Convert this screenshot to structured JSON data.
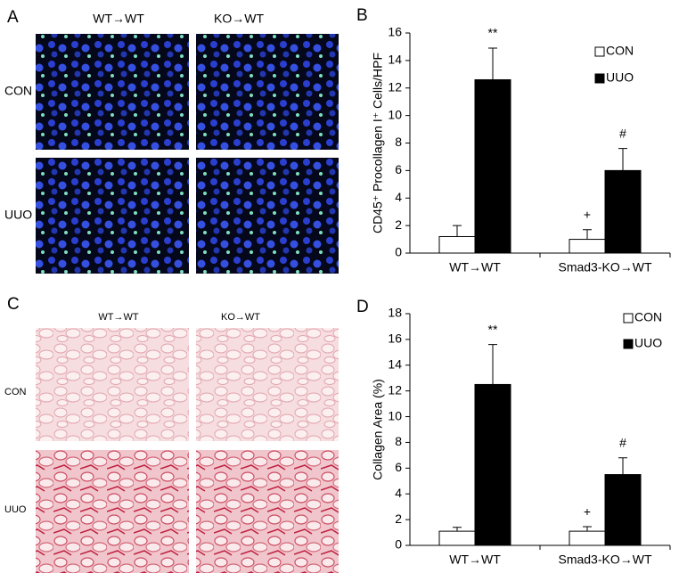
{
  "panels": [
    {
      "label": "A",
      "columns": [
        "WT→WT",
        "KO→WT"
      ],
      "rows": [
        "CON",
        "UUO"
      ]
    },
    {
      "label": "C",
      "columns": [
        "WT→WT",
        "KO→WT"
      ],
      "rows": [
        "CON",
        "UUO"
      ]
    }
  ],
  "chart_data": [
    {
      "type": "bar",
      "panel": "B",
      "y_label": "CD45⁺ Procollagen I⁺ Cells/HPF",
      "categories": [
        "WT→WT",
        "Smad3-KO→WT"
      ],
      "series": [
        {
          "name": "CON",
          "color": "#ffffff",
          "values": [
            1.2,
            1.0
          ],
          "errors": [
            0.8,
            0.7
          ],
          "annotations": [
            null,
            "+"
          ]
        },
        {
          "name": "UUO",
          "color": "#000000",
          "values": [
            12.6,
            6.0
          ],
          "errors": [
            2.3,
            1.6
          ],
          "annotations": [
            "**",
            "#"
          ]
        }
      ],
      "ylim": [
        0,
        16
      ],
      "yticks": [
        0,
        2,
        4,
        6,
        8,
        10,
        12,
        14,
        16
      ]
    },
    {
      "type": "bar",
      "panel": "D",
      "y_label": "Collagen Area (%)",
      "categories": [
        "WT→WT",
        "Smad3-KO→WT"
      ],
      "series": [
        {
          "name": "CON",
          "color": "#ffffff",
          "values": [
            1.1,
            1.1
          ],
          "errors": [
            0.3,
            0.35
          ],
          "annotations": [
            null,
            "+"
          ]
        },
        {
          "name": "UUO",
          "color": "#000000",
          "values": [
            12.5,
            5.5
          ],
          "errors": [
            3.1,
            1.3
          ],
          "annotations": [
            "**",
            "#"
          ]
        }
      ],
      "ylim": [
        0,
        18
      ],
      "yticks": [
        0,
        2,
        4,
        6,
        8,
        10,
        12,
        14,
        16,
        18
      ]
    }
  ]
}
